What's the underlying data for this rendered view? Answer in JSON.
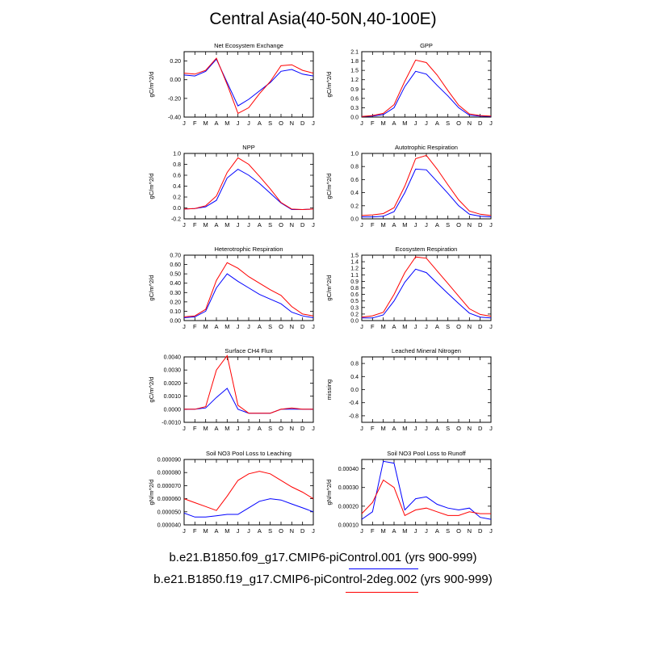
{
  "title": "Central Asia(40-50N,40-100E)",
  "colors": {
    "series_1": "#0000ff",
    "series_2": "#ff0000",
    "axis": "#000000"
  },
  "legend": [
    {
      "label": "b.e21.B1850.f09_g17.CMIP6-piControl.001 (yrs 900-999)",
      "color": "#0000ff"
    },
    {
      "label": "b.e21.B1850.f19_g17.CMIP6-piControl-2deg.002 (yrs 900-999)",
      "color": "#ff0000"
    }
  ],
  "chart_data": [
    {
      "type": "line",
      "title": "Net Ecosystem Exchange",
      "ylabel": "gC/m^2/d",
      "categories": [
        "J",
        "F",
        "M",
        "A",
        "M",
        "J",
        "J",
        "A",
        "S",
        "O",
        "N",
        "D",
        "J"
      ],
      "ylim": [
        -0.4,
        0.3
      ],
      "yticks": [
        "-0.40",
        "-0.20",
        "0.00",
        "0.20"
      ],
      "ytick_values": [
        -0.4,
        -0.2,
        0.0,
        0.2
      ],
      "series": [
        {
          "color": "#0000ff",
          "values": [
            0.05,
            0.04,
            0.09,
            0.22,
            -0.03,
            -0.28,
            -0.21,
            -0.12,
            -0.03,
            0.09,
            0.11,
            0.06,
            0.04
          ]
        },
        {
          "color": "#ff0000",
          "values": [
            0.07,
            0.06,
            0.1,
            0.23,
            -0.05,
            -0.36,
            -0.3,
            -0.15,
            -0.02,
            0.15,
            0.16,
            0.1,
            0.07
          ]
        }
      ]
    },
    {
      "type": "line",
      "title": "GPP",
      "ylabel": "gC/m^2/d",
      "categories": [
        "J",
        "F",
        "M",
        "A",
        "M",
        "J",
        "J",
        "A",
        "S",
        "O",
        "N",
        "D",
        "J"
      ],
      "ylim": [
        0.0,
        2.1
      ],
      "yticks": [
        "0.0",
        "0.3",
        "0.6",
        "0.9",
        "1.2",
        "1.5",
        "1.8",
        "2.1"
      ],
      "ytick_values": [
        0.0,
        0.3,
        0.6,
        0.9,
        1.2,
        1.5,
        1.8,
        2.1
      ],
      "series": [
        {
          "color": "#0000ff",
          "values": [
            0.02,
            0.03,
            0.08,
            0.3,
            0.98,
            1.47,
            1.38,
            1.02,
            0.68,
            0.3,
            0.06,
            0.03,
            0.02
          ]
        },
        {
          "color": "#ff0000",
          "values": [
            0.02,
            0.05,
            0.12,
            0.4,
            1.15,
            1.83,
            1.75,
            1.35,
            0.85,
            0.38,
            0.1,
            0.05,
            0.03
          ]
        }
      ]
    },
    {
      "type": "line",
      "title": "NPP",
      "ylabel": "gC/m^2/d",
      "categories": [
        "J",
        "F",
        "M",
        "A",
        "M",
        "J",
        "J",
        "A",
        "S",
        "O",
        "N",
        "D",
        "J"
      ],
      "ylim": [
        -0.2,
        1.0
      ],
      "yticks": [
        "-0.2",
        "0.0",
        "0.2",
        "0.4",
        "0.6",
        "0.8",
        "1.0"
      ],
      "ytick_values": [
        -0.2,
        0.0,
        0.2,
        0.4,
        0.6,
        0.8,
        1.0
      ],
      "series": [
        {
          "color": "#0000ff",
          "values": [
            -0.02,
            -0.01,
            0.02,
            0.14,
            0.55,
            0.71,
            0.6,
            0.45,
            0.27,
            0.09,
            -0.03,
            -0.03,
            -0.02
          ]
        },
        {
          "color": "#ff0000",
          "values": [
            -0.02,
            -0.01,
            0.04,
            0.22,
            0.65,
            0.92,
            0.8,
            0.58,
            0.35,
            0.1,
            -0.02,
            -0.03,
            -0.02
          ]
        }
      ]
    },
    {
      "type": "line",
      "title": "Autotrophic Respiration",
      "ylabel": "gC/m^2/d",
      "categories": [
        "J",
        "F",
        "M",
        "A",
        "M",
        "J",
        "J",
        "A",
        "S",
        "O",
        "N",
        "D",
        "J"
      ],
      "ylim": [
        0.0,
        1.0
      ],
      "yticks": [
        "0.0",
        "0.2",
        "0.4",
        "0.6",
        "0.8",
        "1.0"
      ],
      "ytick_values": [
        0.0,
        0.2,
        0.4,
        0.6,
        0.8,
        1.0
      ],
      "series": [
        {
          "color": "#0000ff",
          "values": [
            0.03,
            0.03,
            0.04,
            0.11,
            0.4,
            0.76,
            0.75,
            0.57,
            0.39,
            0.2,
            0.07,
            0.04,
            0.03
          ]
        },
        {
          "color": "#ff0000",
          "values": [
            0.05,
            0.06,
            0.08,
            0.17,
            0.5,
            0.92,
            0.97,
            0.76,
            0.52,
            0.29,
            0.12,
            0.07,
            0.05
          ]
        }
      ]
    },
    {
      "type": "line",
      "title": "Heterotrophic Respiration",
      "ylabel": "gC/m^2/d",
      "categories": [
        "J",
        "F",
        "M",
        "A",
        "M",
        "J",
        "J",
        "A",
        "S",
        "O",
        "N",
        "D",
        "J"
      ],
      "ylim": [
        0.0,
        0.7
      ],
      "yticks": [
        "0.00",
        "0.10",
        "0.20",
        "0.30",
        "0.40",
        "0.50",
        "0.60",
        "0.70"
      ],
      "ytick_values": [
        0.0,
        0.1,
        0.2,
        0.3,
        0.4,
        0.5,
        0.6,
        0.7
      ],
      "series": [
        {
          "color": "#0000ff",
          "values": [
            0.03,
            0.04,
            0.1,
            0.35,
            0.5,
            0.42,
            0.35,
            0.28,
            0.23,
            0.18,
            0.09,
            0.05,
            0.03
          ]
        },
        {
          "color": "#ff0000",
          "values": [
            0.04,
            0.05,
            0.12,
            0.43,
            0.62,
            0.56,
            0.47,
            0.4,
            0.33,
            0.27,
            0.15,
            0.07,
            0.05
          ]
        }
      ]
    },
    {
      "type": "line",
      "title": "Ecosystem Respiration",
      "ylabel": "gC/m^2/d",
      "categories": [
        "J",
        "F",
        "M",
        "A",
        "M",
        "J",
        "J",
        "A",
        "S",
        "O",
        "N",
        "D",
        "J"
      ],
      "ylim": [
        0.0,
        1.5
      ],
      "yticks": [
        "0.0",
        "0.2",
        "0.3",
        "0.5",
        "0.6",
        "0.8",
        "0.9",
        "1.1",
        "1.2",
        "1.4",
        "1.5"
      ],
      "ytick_values": [
        0.0,
        0.15,
        0.3,
        0.45,
        0.6,
        0.75,
        0.9,
        1.05,
        1.2,
        1.35,
        1.5
      ],
      "series": [
        {
          "color": "#0000ff",
          "values": [
            0.06,
            0.06,
            0.13,
            0.45,
            0.88,
            1.18,
            1.1,
            0.86,
            0.62,
            0.39,
            0.17,
            0.08,
            0.06
          ]
        },
        {
          "color": "#ff0000",
          "values": [
            0.08,
            0.11,
            0.19,
            0.6,
            1.1,
            1.46,
            1.43,
            1.14,
            0.85,
            0.56,
            0.27,
            0.14,
            0.1
          ]
        }
      ]
    },
    {
      "type": "line",
      "title": "Surface CH4 Flux",
      "ylabel": "gC/m^2/d",
      "categories": [
        "J",
        "F",
        "M",
        "A",
        "M",
        "J",
        "J",
        "A",
        "S",
        "O",
        "N",
        "D",
        "J"
      ],
      "ylim": [
        -0.001,
        0.004
      ],
      "yticks": [
        "-0.0010",
        "0.0000",
        "0.0010",
        "0.0020",
        "0.0030",
        "0.0040"
      ],
      "ytick_values": [
        -0.001,
        0.0,
        0.001,
        0.002,
        0.003,
        0.004
      ],
      "series": [
        {
          "color": "#0000ff",
          "values": [
            0.0,
            0.0,
            0.0001,
            0.0009,
            0.0016,
            0.0,
            -0.0003,
            -0.0003,
            -0.0003,
            0.0,
            0.0,
            0.0,
            0.0
          ]
        },
        {
          "color": "#ff0000",
          "values": [
            0.0,
            0.0,
            0.0002,
            0.003,
            0.0041,
            0.0003,
            -0.0003,
            -0.0003,
            -0.0003,
            0.0,
            0.0001,
            0.0,
            0.0
          ]
        }
      ]
    },
    {
      "type": "line",
      "title": "Leached Mineral Nitrogen",
      "ylabel": "missing",
      "categories": [
        "J",
        "F",
        "M",
        "A",
        "M",
        "J",
        "J",
        "A",
        "S",
        "O",
        "N",
        "D",
        "J"
      ],
      "ylim": [
        -1.0,
        1.0
      ],
      "yticks": [
        "-0.8",
        "-0.4",
        "0.0",
        "0.4",
        "0.8"
      ],
      "ytick_values": [
        -0.8,
        -0.4,
        0.0,
        0.4,
        0.8
      ],
      "series": []
    },
    {
      "type": "line",
      "title": "Soil NO3 Pool Loss to Leaching",
      "ylabel": "gN/m^2/d",
      "categories": [
        "J",
        "F",
        "M",
        "A",
        "M",
        "J",
        "J",
        "A",
        "S",
        "O",
        "N",
        "D",
        "J"
      ],
      "ylim": [
        4e-05,
        9e-05
      ],
      "yticks": [
        "0.000040",
        "0.000050",
        "0.000060",
        "0.000070",
        "0.000080",
        "0.000090"
      ],
      "ytick_values": [
        4e-05,
        5e-05,
        6e-05,
        7e-05,
        8e-05,
        9e-05
      ],
      "series": [
        {
          "color": "#0000ff",
          "values": [
            4.9e-05,
            4.6e-05,
            4.6e-05,
            4.7e-05,
            4.8e-05,
            4.8e-05,
            5.3e-05,
            5.8e-05,
            6e-05,
            5.9e-05,
            5.6e-05,
            5.3e-05,
            5e-05
          ]
        },
        {
          "color": "#ff0000",
          "values": [
            6e-05,
            5.7e-05,
            5.4e-05,
            5.1e-05,
            6.2e-05,
            7.4e-05,
            7.9e-05,
            8.1e-05,
            7.9e-05,
            7.4e-05,
            6.9e-05,
            6.5e-05,
            6e-05
          ]
        }
      ]
    },
    {
      "type": "line",
      "title": "Soil NO3 Pool Loss to Runoff",
      "ylabel": "gN/m^2/d",
      "categories": [
        "J",
        "F",
        "M",
        "A",
        "M",
        "J",
        "J",
        "A",
        "S",
        "O",
        "N",
        "D",
        "J"
      ],
      "ylim": [
        0.0001,
        0.00045
      ],
      "yticks": [
        "0.00010",
        "0.00020",
        "0.00030",
        "0.00040"
      ],
      "ytick_values": [
        0.0001,
        0.0002,
        0.0003,
        0.0004
      ],
      "series": [
        {
          "color": "#0000ff",
          "values": [
            0.00013,
            0.00017,
            0.00044,
            0.00043,
            0.00018,
            0.00024,
            0.00025,
            0.00021,
            0.00019,
            0.00018,
            0.00019,
            0.00014,
            0.00013
          ]
        },
        {
          "color": "#ff0000",
          "values": [
            0.00016,
            0.00022,
            0.00034,
            0.0003,
            0.00015,
            0.00018,
            0.00019,
            0.00017,
            0.00015,
            0.00015,
            0.00017,
            0.00016,
            0.00016
          ]
        }
      ]
    }
  ]
}
